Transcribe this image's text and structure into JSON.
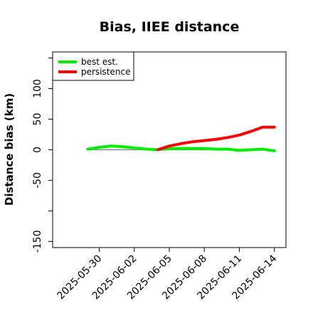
{
  "chart_data": {
    "type": "line",
    "title": "Bias, IIEE distance",
    "xlabel": "",
    "ylabel": "Distance bias (km)",
    "ylim": [
      -160,
      160
    ],
    "yticks": [
      -150,
      -50,
      0,
      50,
      100
    ],
    "y_ticks_unlabeled": [
      -100,
      150
    ],
    "xlim": [
      "2025-05-26",
      "2025-06-15"
    ],
    "xticks": [
      "2025-05-30",
      "2025-06-02",
      "2025-06-05",
      "2025-06-08",
      "2025-06-11",
      "2025-06-14"
    ],
    "grid": false,
    "legend_position": "top-left",
    "zero_line": true,
    "series": [
      {
        "name": "best est.",
        "color": "#00ee00",
        "x": [
          "2025-05-29",
          "2025-05-30",
          "2025-05-31",
          "2025-06-01",
          "2025-06-02",
          "2025-06-03",
          "2025-06-04",
          "2025-06-05",
          "2025-06-06",
          "2025-06-07",
          "2025-06-08",
          "2025-06-09",
          "2025-06-10",
          "2025-06-11",
          "2025-06-12",
          "2025-06-13",
          "2025-06-14"
        ],
        "values": [
          1,
          4,
          6,
          5,
          3,
          1,
          0,
          2,
          2,
          2,
          2,
          1,
          1,
          -1,
          0,
          1,
          -2
        ]
      },
      {
        "name": "persistence",
        "color": "#ff0000",
        "x": [
          "2025-06-04",
          "2025-06-05",
          "2025-06-06",
          "2025-06-07",
          "2025-06-08",
          "2025-06-09",
          "2025-06-10",
          "2025-06-11",
          "2025-06-12",
          "2025-06-13",
          "2025-06-14"
        ],
        "values": [
          0,
          6,
          10,
          13,
          15,
          17,
          20,
          24,
          30,
          37,
          37
        ]
      }
    ]
  }
}
